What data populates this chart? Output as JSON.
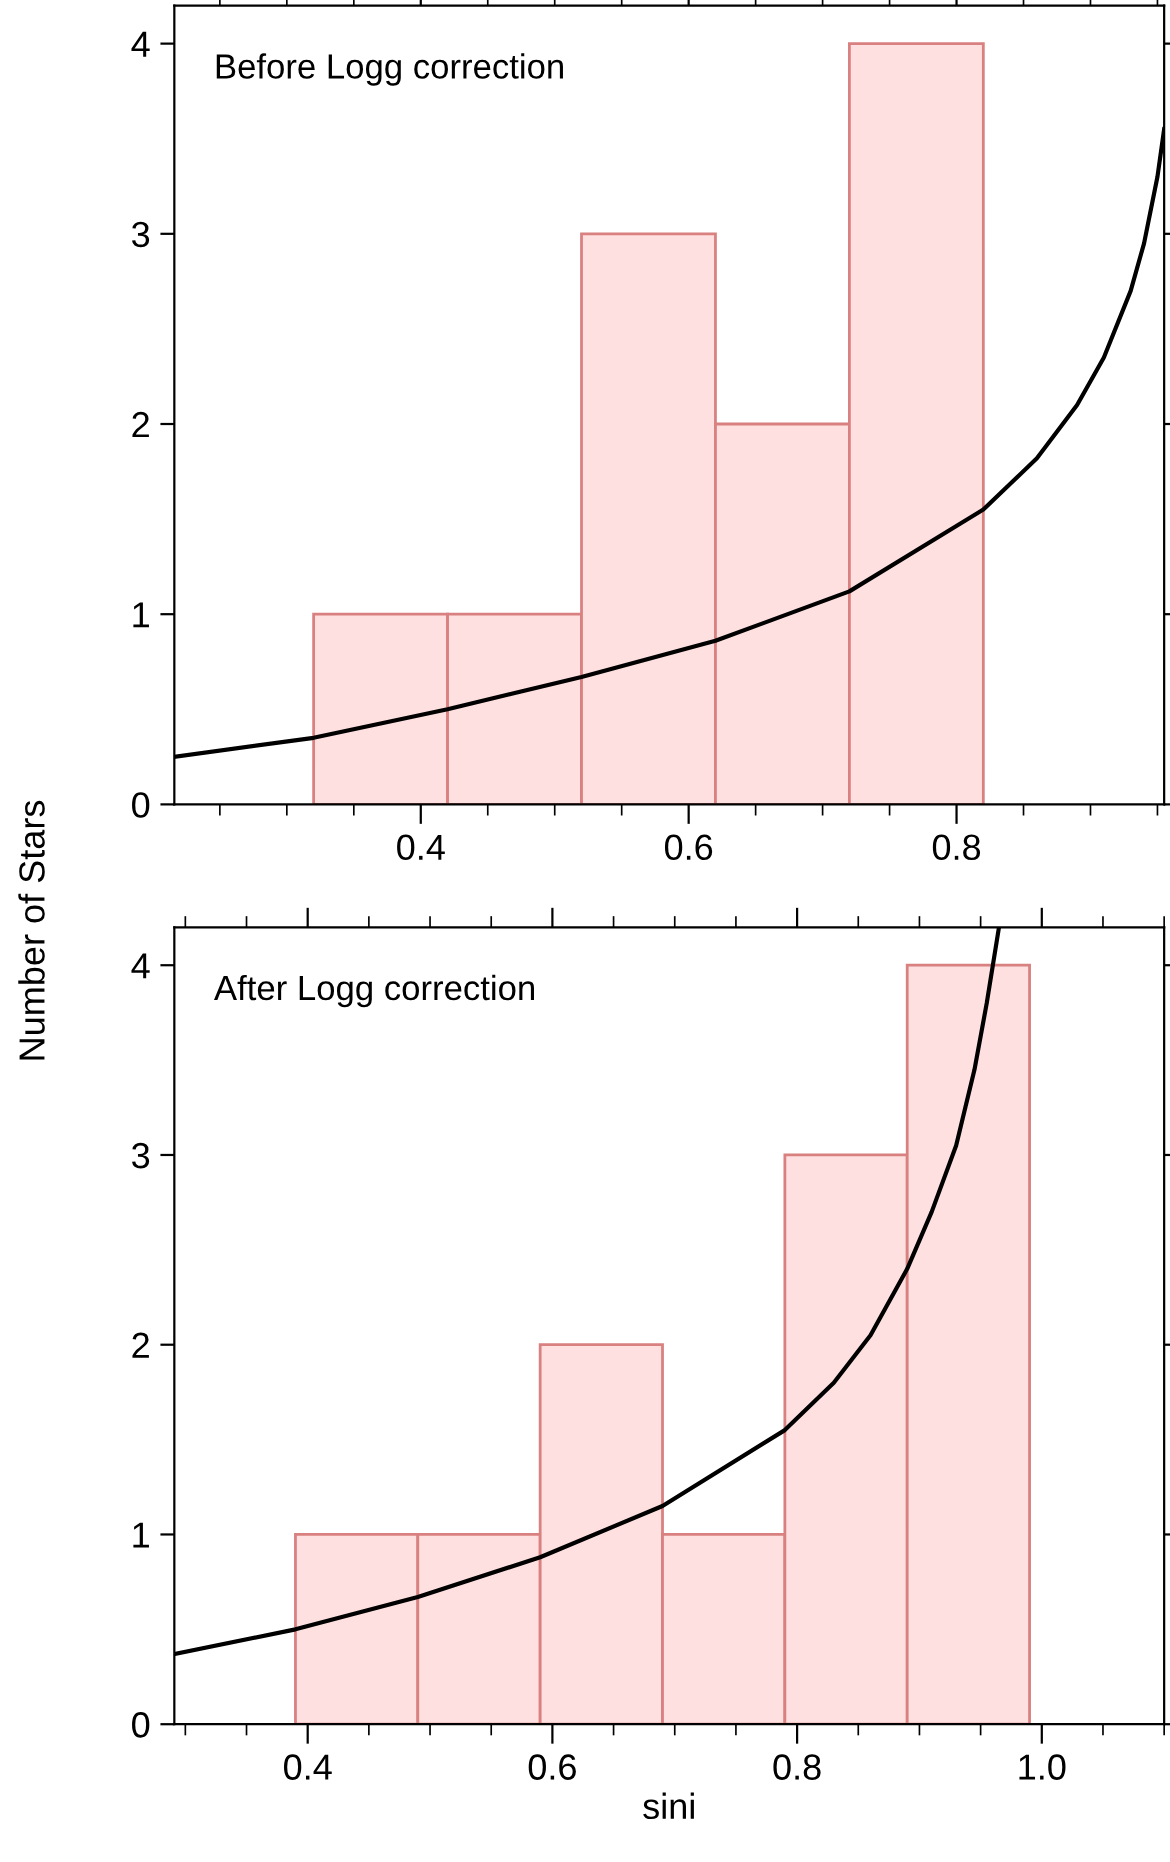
{
  "chart_data": [
    {
      "type": "histogram",
      "title": "Before Logg correction",
      "ylabel": "Number of Stars",
      "bins": [
        0.32,
        0.42,
        0.52,
        0.62,
        0.72,
        0.82
      ],
      "values": [
        1,
        1,
        3,
        2,
        4
      ],
      "color": "#fde0df",
      "series": [
        {
          "type": "line",
          "color": "#000000",
          "x": [
            0.216,
            0.32,
            0.42,
            0.52,
            0.62,
            0.72,
            0.82,
            0.86,
            0.89,
            0.91,
            0.93,
            0.94,
            0.95,
            0.955
          ],
          "values": [
            0.25,
            0.35,
            0.5,
            0.67,
            0.86,
            1.12,
            1.55,
            1.82,
            2.1,
            2.35,
            2.7,
            2.95,
            3.3,
            3.55
          ]
        }
      ],
      "xlim": [
        0.216,
        0.955
      ],
      "xticks": [
        0.4,
        0.6,
        0.8
      ],
      "ylim": [
        0,
        4.2
      ],
      "yticks": [
        0,
        1,
        2,
        3,
        4
      ],
      "grid": false,
      "legend": false
    },
    {
      "type": "histogram",
      "title": "After Logg correction",
      "xlabel": "sini",
      "bins": [
        0.39,
        0.49,
        0.59,
        0.69,
        0.79,
        0.89,
        0.99
      ],
      "values": [
        1,
        1,
        2,
        1,
        3,
        4
      ],
      "color": "#fde0df",
      "series": [
        {
          "type": "line",
          "color": "#000000",
          "x": [
            0.291,
            0.39,
            0.49,
            0.59,
            0.69,
            0.79,
            0.83,
            0.86,
            0.89,
            0.91,
            0.93,
            0.945,
            0.955,
            0.965
          ],
          "values": [
            0.37,
            0.5,
            0.67,
            0.88,
            1.15,
            1.55,
            1.8,
            2.05,
            2.4,
            2.7,
            3.05,
            3.45,
            3.8,
            4.2
          ]
        }
      ],
      "xlim": [
        0.291,
        1.1
      ],
      "xticks": [
        0.4,
        0.6,
        0.8,
        {
          "value": 1.0,
          "label": "1.0"
        }
      ],
      "ylim": [
        0,
        4.2
      ],
      "yticks": [
        0,
        1,
        2,
        3,
        4
      ],
      "grid": false,
      "legend": false
    }
  ]
}
